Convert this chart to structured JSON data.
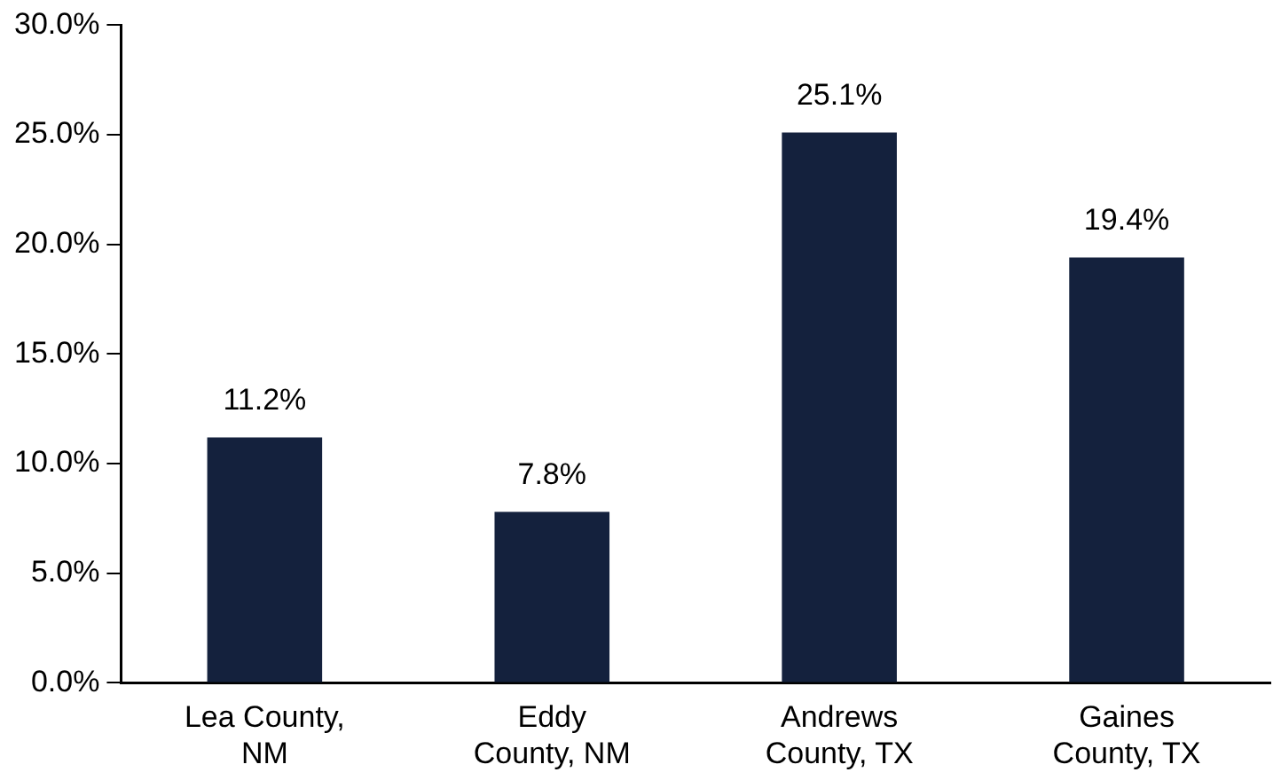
{
  "chart_data": {
    "type": "bar",
    "categories": [
      "Lea County,\nNM",
      "Eddy\nCounty, NM",
      "Andrews\nCounty, TX",
      "Gaines\nCounty, TX"
    ],
    "values": [
      11.2,
      7.8,
      25.1,
      19.4
    ],
    "value_labels": [
      "11.2%",
      "7.8%",
      "25.1%",
      "19.4%"
    ],
    "color": "#14213d",
    "ylim": [
      0,
      30
    ],
    "yticks": [
      {
        "value": 0,
        "label": "0.0%"
      },
      {
        "value": 5,
        "label": "5.0%"
      },
      {
        "value": 10,
        "label": "10.0%"
      },
      {
        "value": 15,
        "label": "15.0%"
      },
      {
        "value": 20,
        "label": "20.0%"
      },
      {
        "value": 25,
        "label": "25.0%"
      },
      {
        "value": 30,
        "label": "30.0%"
      }
    ],
    "grid": false,
    "legend": false
  }
}
